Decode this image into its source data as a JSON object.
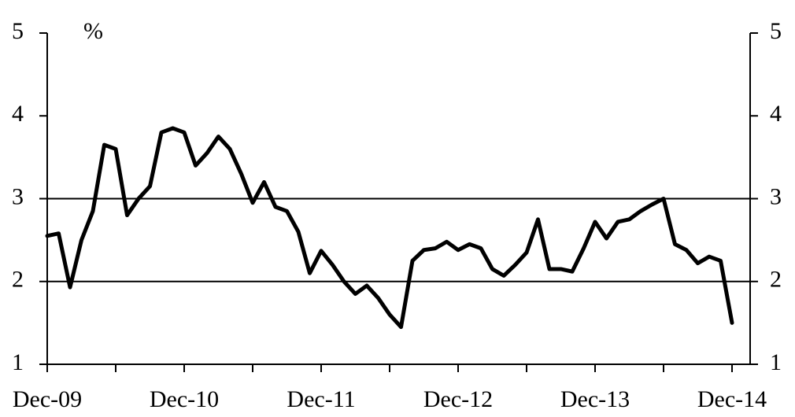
{
  "chart_data": {
    "type": "line",
    "y_label": "%",
    "categories": [
      "Dec-09",
      null,
      null,
      null,
      null,
      null,
      null,
      null,
      null,
      null,
      null,
      null,
      "Dec-10",
      null,
      null,
      null,
      null,
      null,
      null,
      null,
      null,
      null,
      null,
      null,
      "Dec-11",
      null,
      null,
      null,
      null,
      null,
      null,
      null,
      null,
      null,
      null,
      null,
      "Dec-12",
      null,
      null,
      null,
      null,
      null,
      null,
      null,
      null,
      null,
      null,
      null,
      "Dec-13",
      null,
      null,
      null,
      null,
      null,
      null,
      null,
      null,
      null,
      null,
      null,
      "Dec-14"
    ],
    "series": [
      {
        "color": "#000000",
        "values": [
          2.55,
          2.58,
          1.93,
          2.5,
          2.85,
          3.65,
          3.6,
          2.8,
          3.0,
          3.15,
          3.8,
          3.85,
          3.8,
          3.4,
          3.55,
          3.75,
          3.6,
          3.3,
          2.95,
          3.2,
          2.9,
          2.85,
          2.6,
          2.1,
          2.37,
          2.2,
          2.0,
          1.85,
          1.95,
          1.8,
          1.6,
          1.45,
          2.25,
          2.38,
          2.4,
          2.48,
          2.38,
          2.45,
          2.4,
          2.15,
          2.07,
          2.2,
          2.35,
          2.75,
          2.15,
          2.15,
          2.12,
          2.4,
          2.72,
          2.52,
          2.72,
          2.75,
          2.85,
          2.93,
          3.0,
          2.45,
          2.38,
          2.22,
          2.3,
          2.25,
          1.5
        ]
      }
    ],
    "ylim": [
      1,
      5
    ],
    "yticks": [
      1,
      2,
      3,
      4,
      5
    ],
    "y2lim": [
      1,
      5
    ],
    "y2ticks": [
      1,
      2,
      3,
      4,
      5
    ],
    "hlines": [
      2,
      3
    ]
  }
}
